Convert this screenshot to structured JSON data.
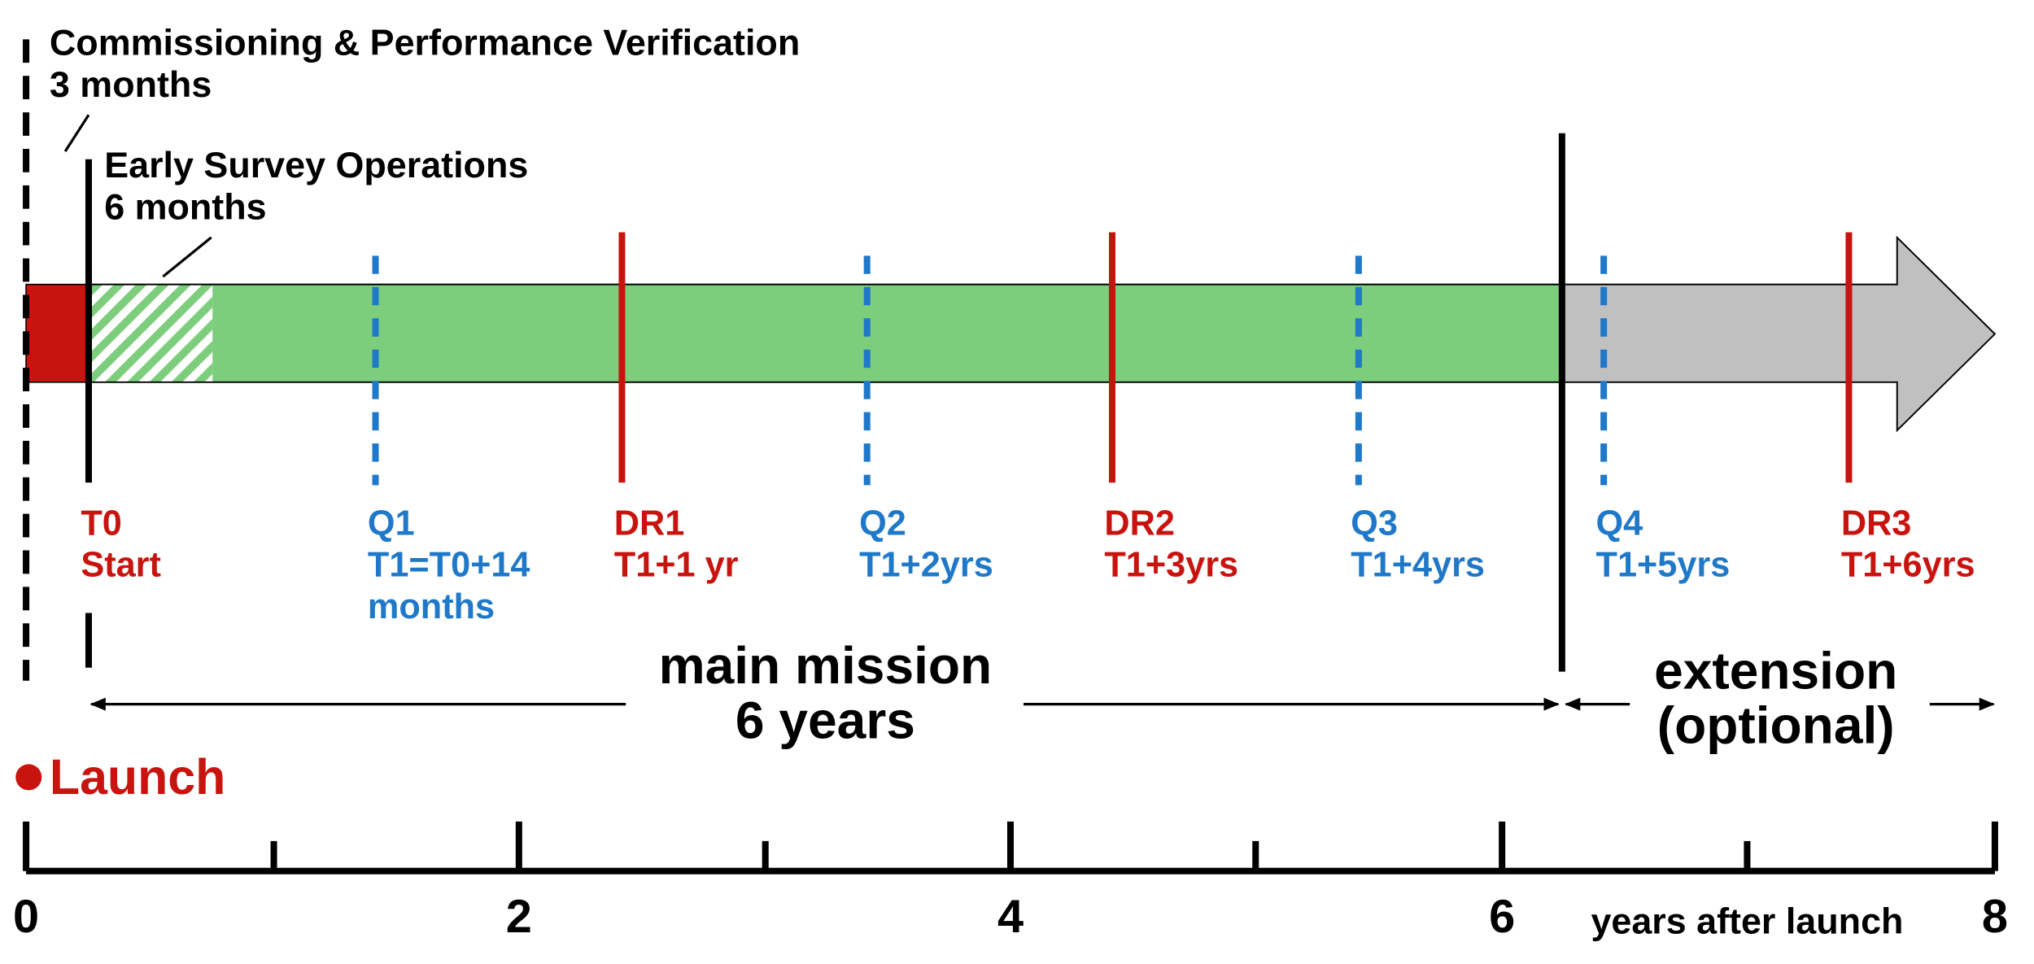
{
  "commissioning": {
    "title": "Commissioning & Performance Verification",
    "duration": "3 months"
  },
  "early_survey": {
    "title": "Early Survey Operations",
    "duration": "6 months"
  },
  "milestones": [
    {
      "lines": [
        "T0",
        "Start"
      ],
      "color": "#c8140f"
    },
    {
      "lines": [
        "Q1",
        "T1=T0+14",
        "months"
      ],
      "color": "#1f78c8"
    },
    {
      "lines": [
        "DR1",
        "T1+1 yr"
      ],
      "color": "#c8140f"
    },
    {
      "lines": [
        "Q2",
        "T1+2yrs"
      ],
      "color": "#1f78c8"
    },
    {
      "lines": [
        "DR2",
        "T1+3yrs"
      ],
      "color": "#c8140f"
    },
    {
      "lines": [
        "Q3",
        "T1+4yrs"
      ],
      "color": "#1f78c8"
    },
    {
      "lines": [
        "Q4",
        "T1+5yrs"
      ],
      "color": "#1f78c8"
    },
    {
      "lines": [
        "DR3",
        "T1+6yrs"
      ],
      "color": "#c8140f"
    }
  ],
  "main_mission": {
    "line1": "main mission",
    "line2": "6 years"
  },
  "extension": {
    "line1": "extension",
    "line2": "(optional)"
  },
  "launch": "Launch",
  "axis": {
    "ticks": [
      "0",
      "2",
      "4",
      "6",
      "8"
    ],
    "label": "years after launch"
  }
}
